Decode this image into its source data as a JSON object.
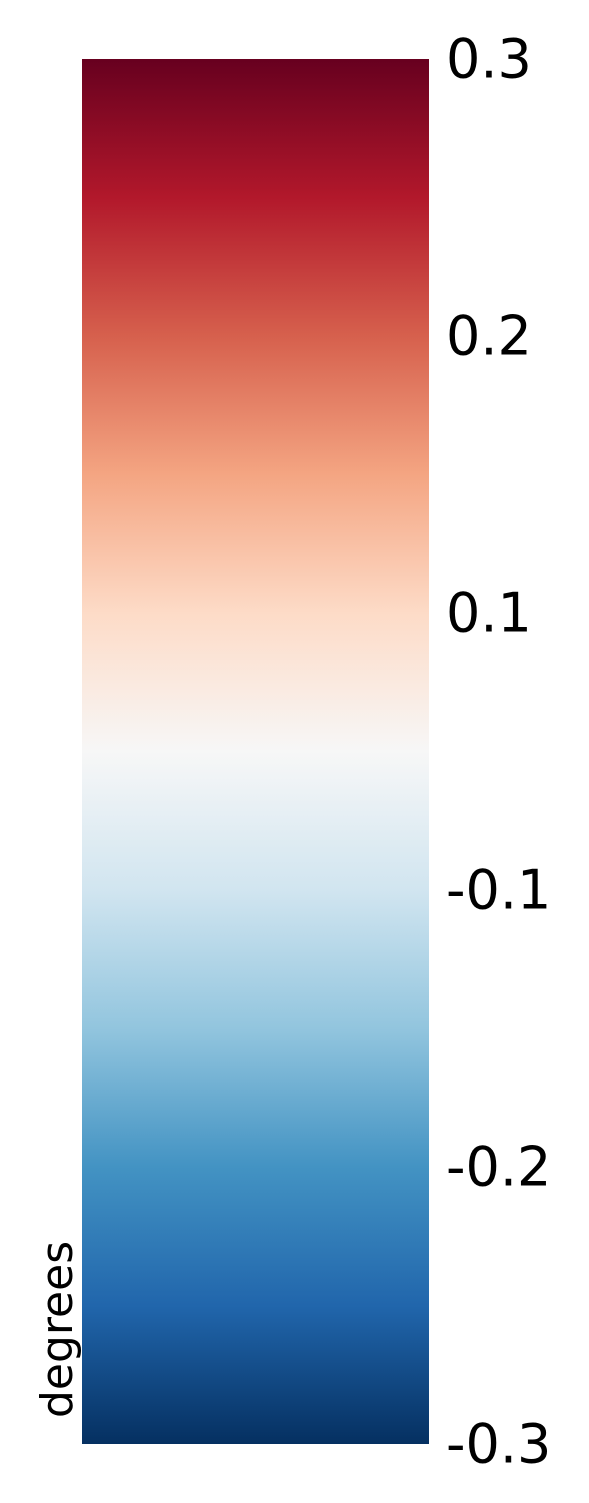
{
  "chart_data": {
    "type": "heatmap",
    "title": "",
    "xlabel": "",
    "ylabel": "degrees",
    "colormap": "RdBu_r",
    "orientation": "vertical",
    "grid": false,
    "tick_labels": [
      "0.3",
      "0.2",
      "0.1",
      "-0.1",
      "-0.2",
      "-0.3"
    ],
    "color_stops": [
      "#053061",
      "#2166ac",
      "#4393c3",
      "#92c5de",
      "#d1e5f0",
      "#f7f7f7",
      "#fddbc7",
      "#f4a582",
      "#d6604d",
      "#b2182b",
      "#67001f"
    ]
  }
}
